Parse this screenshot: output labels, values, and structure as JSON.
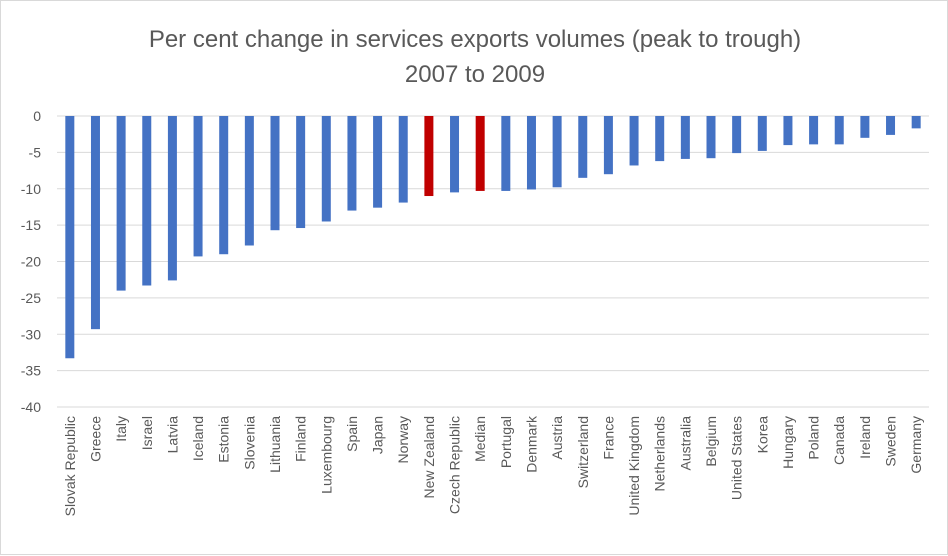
{
  "chart_data": {
    "type": "bar",
    "title_lines": [
      "Per cent change in services exports volumes (peak to trough)",
      "2007 to 2009"
    ],
    "xlabel": "",
    "ylabel": "",
    "ylim": [
      -40,
      0
    ],
    "yticks": [
      0,
      -5,
      -10,
      -15,
      -20,
      -25,
      -30,
      -35,
      -40
    ],
    "grid": true,
    "legend": "none",
    "categories": [
      "Slovak Republic",
      "Greece",
      "Italy",
      "Israel",
      "Latvia",
      "Iceland",
      "Estonia",
      "Slovenia",
      "Lithuania",
      "Finland",
      "Luxembourg",
      "Spain",
      "Japan",
      "Norway",
      "New Zealand",
      "Czech Republic",
      "Median",
      "Portugal",
      "Denmark",
      "Austria",
      "Switzerland",
      "France",
      "United Kingdom",
      "Netherlands",
      "Australia",
      "Belgium",
      "United States",
      "Korea",
      "Hungary",
      "Poland",
      "Canada",
      "Ireland",
      "Sweden",
      "Germany"
    ],
    "values": [
      -33.3,
      -29.3,
      -24.0,
      -23.3,
      -22.6,
      -19.3,
      -19.0,
      -17.8,
      -15.7,
      -15.4,
      -14.5,
      -13.0,
      -12.6,
      -11.9,
      -11.0,
      -10.5,
      -10.3,
      -10.3,
      -10.1,
      -9.8,
      -8.5,
      -8.0,
      -6.8,
      -6.2,
      -5.9,
      -5.8,
      -5.1,
      -4.8,
      -4.0,
      -3.9,
      -3.9,
      -3.0,
      -2.6,
      -1.7
    ],
    "colors": {
      "default": "#4472c4",
      "highlight": "#c00000",
      "highlighted_categories": [
        "New Zealand",
        "Median"
      ]
    }
  }
}
